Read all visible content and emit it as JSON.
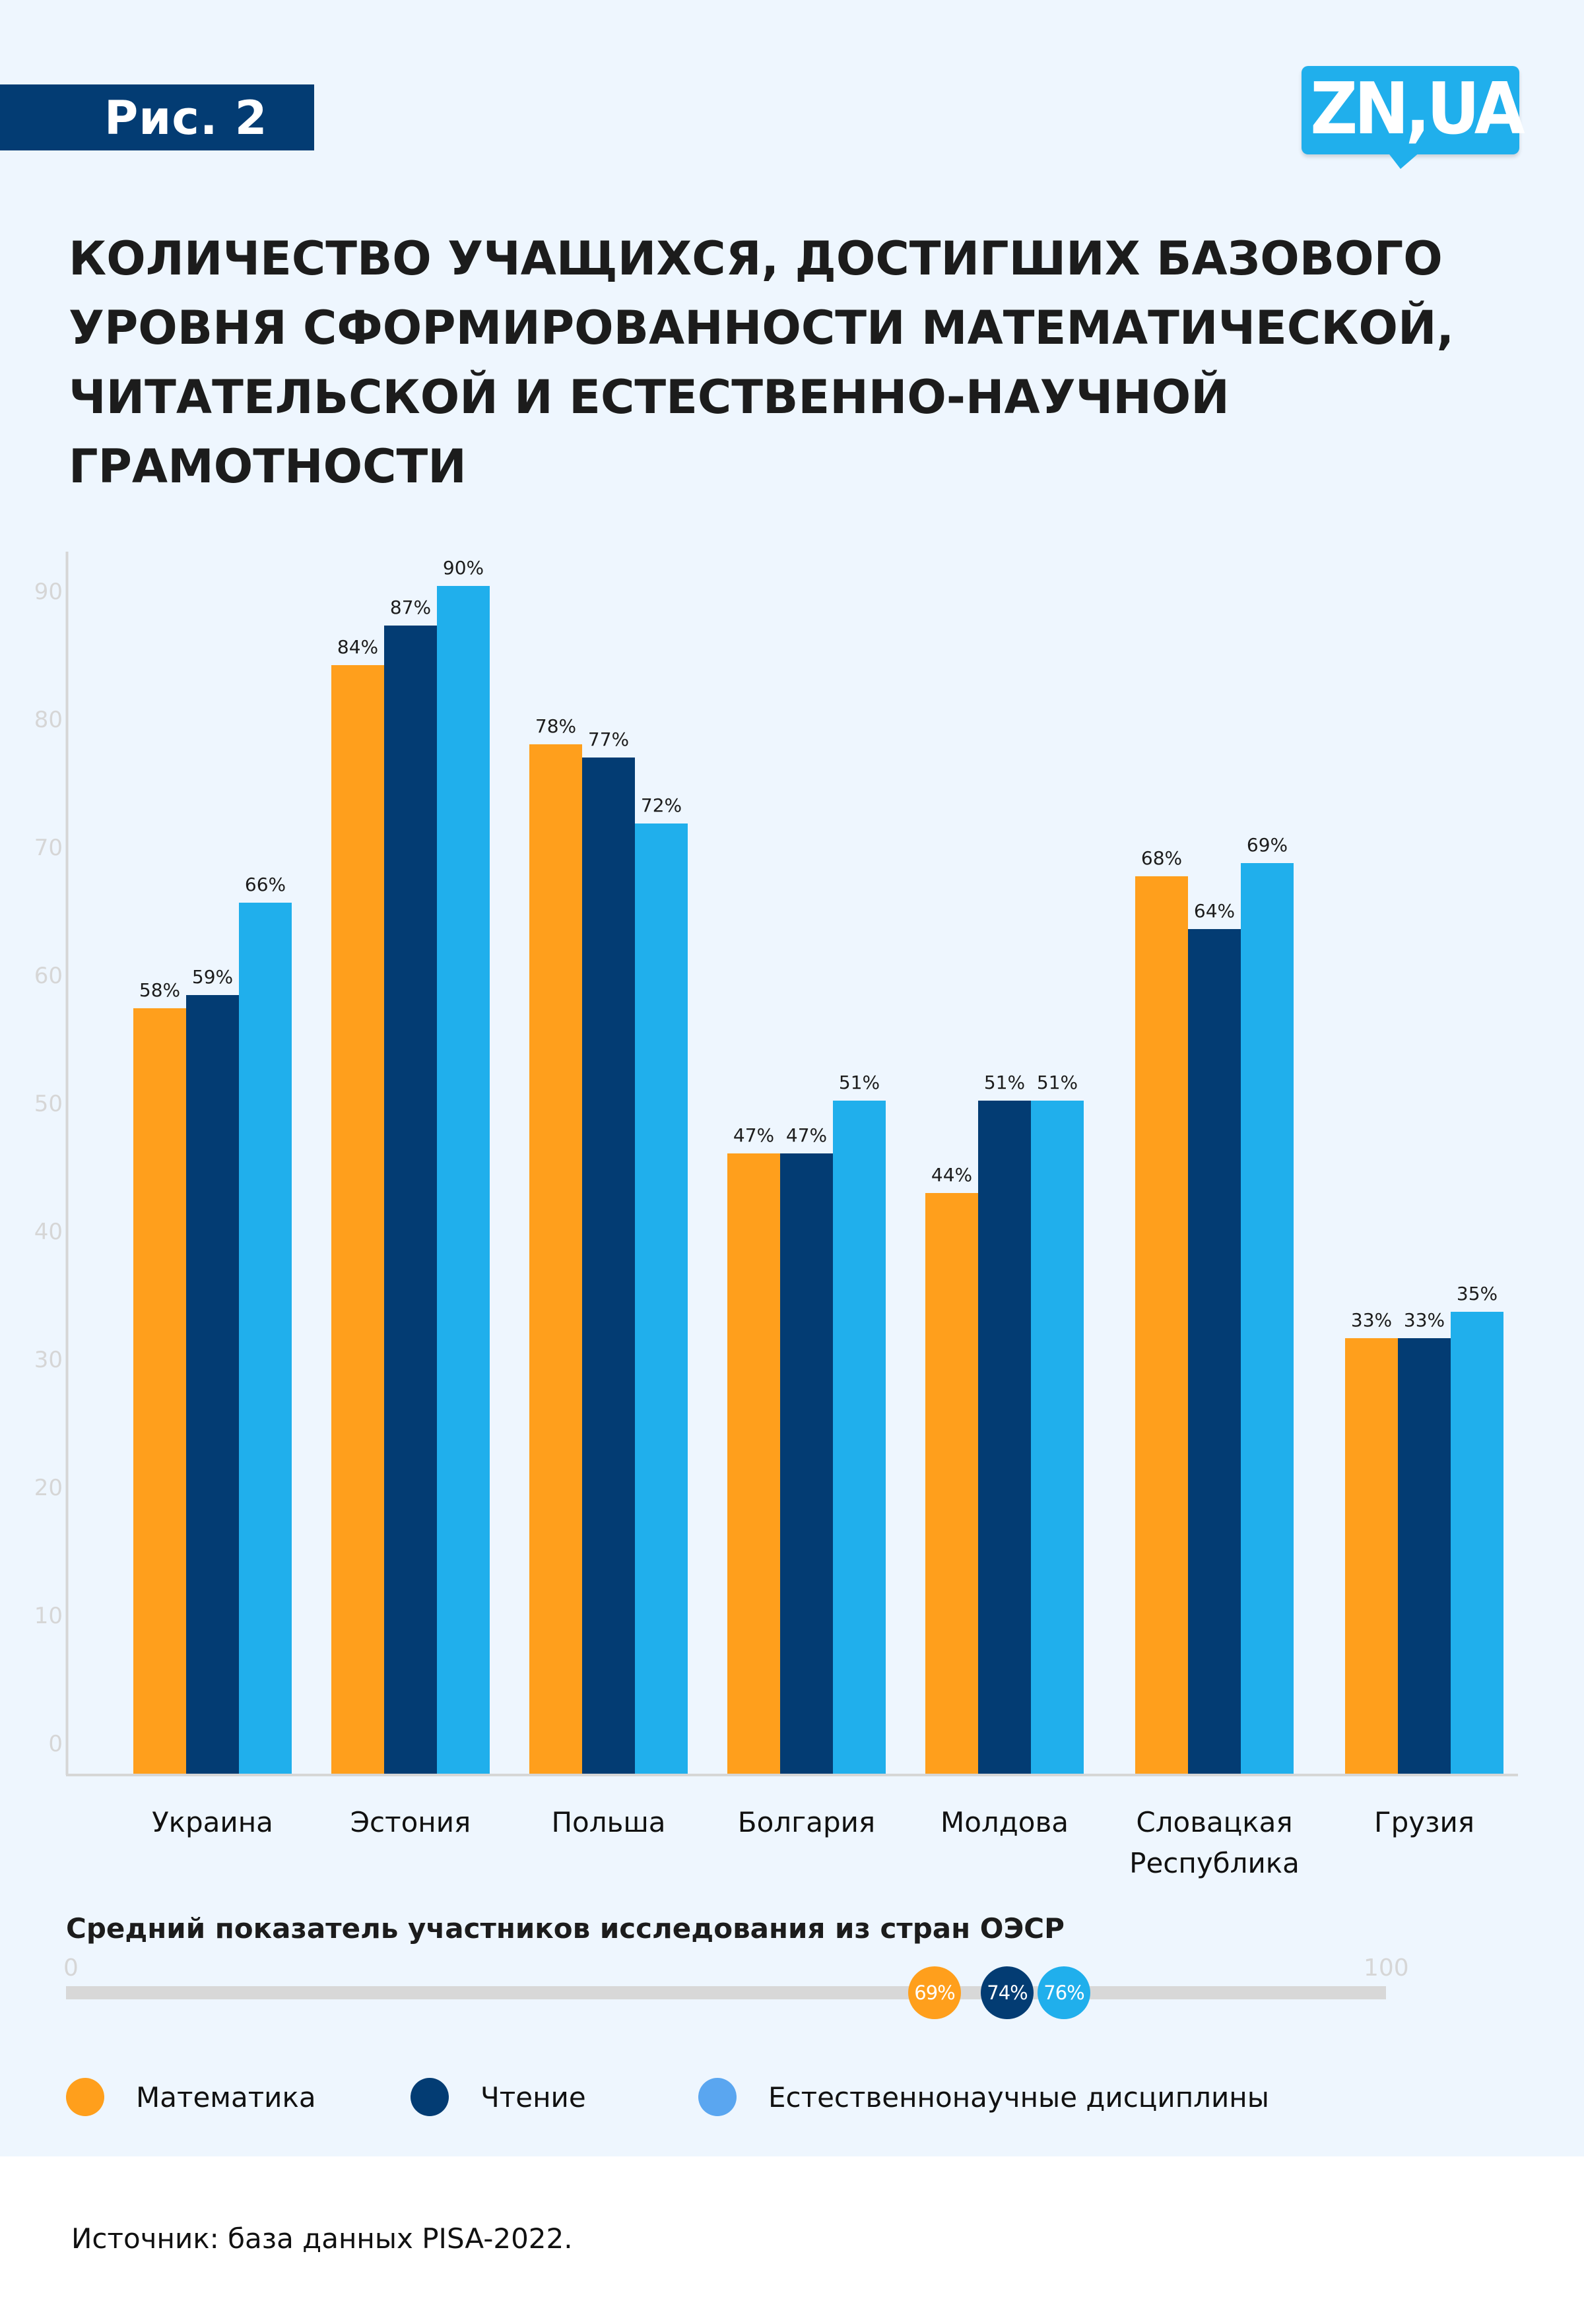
{
  "header": {
    "figure_label": "Рис. 2",
    "logo_text": "ZN,UA"
  },
  "title_lines": [
    "КОЛИЧЕСТВО УЧАЩИХСЯ, ДОСТИГШИХ БАЗОВОГО",
    "УРОВНЯ СФОРМИРОВАННОСТИ МАТЕМАТИЧЕСКОЙ,",
    "ЧИТАТЕЛЬСКОЙ И ЕСТЕСТВЕННО-НАУЧНОЙ",
    "ГРАМОТНОСТИ"
  ],
  "colors": {
    "math": "#FF9F1C",
    "reading": "#033C73",
    "science": "#20AFEC",
    "science_legend": "#5AA6F0",
    "navy": "#033C73",
    "logo": "#20AFEC",
    "background": "#EEF6FE"
  },
  "chart_data": {
    "type": "bar",
    "title": "Количество учащихся, достигших базового уровня сформированности математической, читательской и естественно-научной грамотности",
    "xlabel": "",
    "ylabel": "",
    "ylim": [
      0,
      90
    ],
    "yticks": [
      "0",
      "10",
      "20",
      "30",
      "40",
      "50",
      "60",
      "70",
      "80",
      "90"
    ],
    "grid": false,
    "legend_position": "bottom-left",
    "categories": [
      [
        "Украина"
      ],
      [
        "Эстония"
      ],
      [
        "Польша"
      ],
      [
        "Болгария"
      ],
      [
        "Молдова"
      ],
      [
        "Словацкая",
        "Республика"
      ],
      [
        "Грузия"
      ]
    ],
    "series": [
      {
        "name": "Математика",
        "key": "math",
        "values": [
          58,
          84,
          78,
          47,
          44,
          68,
          33
        ],
        "labels": [
          "58%",
          "84%",
          "78%",
          "47%",
          "44%",
          "68%",
          "33%"
        ]
      },
      {
        "name": "Чтение",
        "key": "reading",
        "values": [
          59,
          87,
          77,
          47,
          51,
          64,
          33
        ],
        "labels": [
          "59%",
          "87%",
          "77%",
          "47%",
          "51%",
          "64%",
          "33%"
        ]
      },
      {
        "name": "Естественнонаучные дисциплины",
        "key": "science",
        "values": [
          66,
          90,
          72,
          51,
          51,
          69,
          35
        ],
        "labels": [
          "66%",
          "90%",
          "72%",
          "51%",
          "51%",
          "69%",
          "35%"
        ]
      }
    ]
  },
  "oecd": {
    "title": "Средний показатель участников исследования из стран ОЭСР",
    "scale_min": "0",
    "scale_max": "100",
    "markers": [
      {
        "key": "math",
        "value": 69,
        "label": "69%"
      },
      {
        "key": "reading",
        "value": 74,
        "label": "74%"
      },
      {
        "key": "science",
        "value": 76,
        "label": "76%"
      }
    ]
  },
  "legend": [
    {
      "key": "math",
      "label": "Математика"
    },
    {
      "key": "reading",
      "label": "Чтение"
    },
    {
      "key": "science",
      "label": "Естественнонаучные дисциплины"
    }
  ],
  "source": "Источник: база данных PISA-2022."
}
